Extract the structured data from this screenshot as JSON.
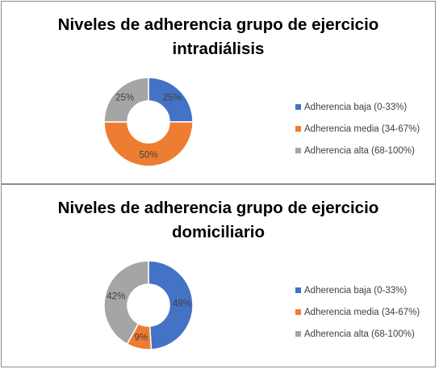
{
  "chart_data": [
    {
      "type": "pie",
      "title": [
        "Niveles de adherencia grupo de ejercicio",
        "intradiálisis"
      ],
      "categories": [
        "Adherencia baja (0-33%)",
        "Adherencia media (34-67%)",
        "Adherencia alta (68-100%)"
      ],
      "values": [
        25,
        50,
        25
      ],
      "labels": [
        "25%",
        "50%",
        "25%"
      ],
      "colors": [
        "#4472c4",
        "#ed7d31",
        "#a5a5a5"
      ],
      "legend_position": "right"
    },
    {
      "type": "pie",
      "title": [
        "Niveles de adherencia grupo de ejercicio",
        "domiciliario"
      ],
      "categories": [
        "Adherencia baja (0-33%)",
        "Adherencia media (34-67%)",
        "Adherencia alta (68-100%)"
      ],
      "values": [
        49,
        9,
        42
      ],
      "labels": [
        "49%",
        "9%",
        "42%"
      ],
      "colors": [
        "#4472c4",
        "#ed7d31",
        "#a5a5a5"
      ],
      "legend_position": "right"
    }
  ]
}
